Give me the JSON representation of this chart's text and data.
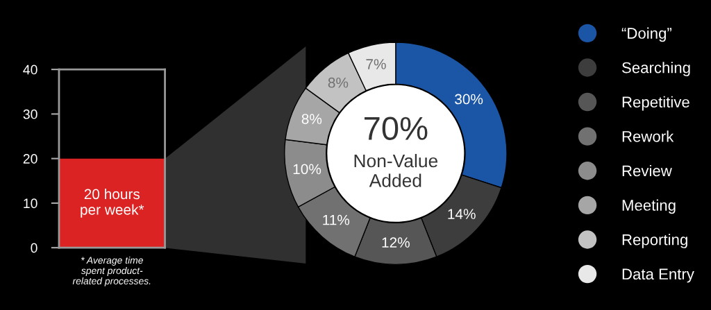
{
  "chart_data": [
    {
      "type": "bar",
      "categories": [
        null
      ],
      "ylim": [
        0,
        40
      ],
      "yticks": [
        0,
        10,
        20,
        30,
        40
      ],
      "grid": false,
      "series": [
        {
          "color": "#dc2323",
          "values": [
            20
          ],
          "value_labels": [
            "20 hours\nper week*"
          ]
        }
      ],
      "annotations": [
        "* Average time\nspent product-\nrelated processes."
      ]
    },
    {
      "type": "donut",
      "categories": [
        "“Doing”",
        "Searching",
        "Repetitive",
        "Rework",
        "Review",
        "Meeting",
        "Reporting",
        "Data Entry"
      ],
      "values": [
        30,
        14,
        12,
        11,
        10,
        8,
        8,
        7
      ],
      "colors": [
        "#1b56a6",
        "#3d3d3d",
        "#565656",
        "#717171",
        "#8c8c8c",
        "#a6a6a6",
        "#c2c2c2",
        "#e8e8e8"
      ],
      "value_labels": [
        "30%",
        "14%",
        "12%",
        "11%",
        "10%",
        "8%",
        "8%",
        "7%"
      ],
      "legend": "right",
      "annotations": [
        "70%",
        "Non-Value\nAdded"
      ]
    }
  ]
}
